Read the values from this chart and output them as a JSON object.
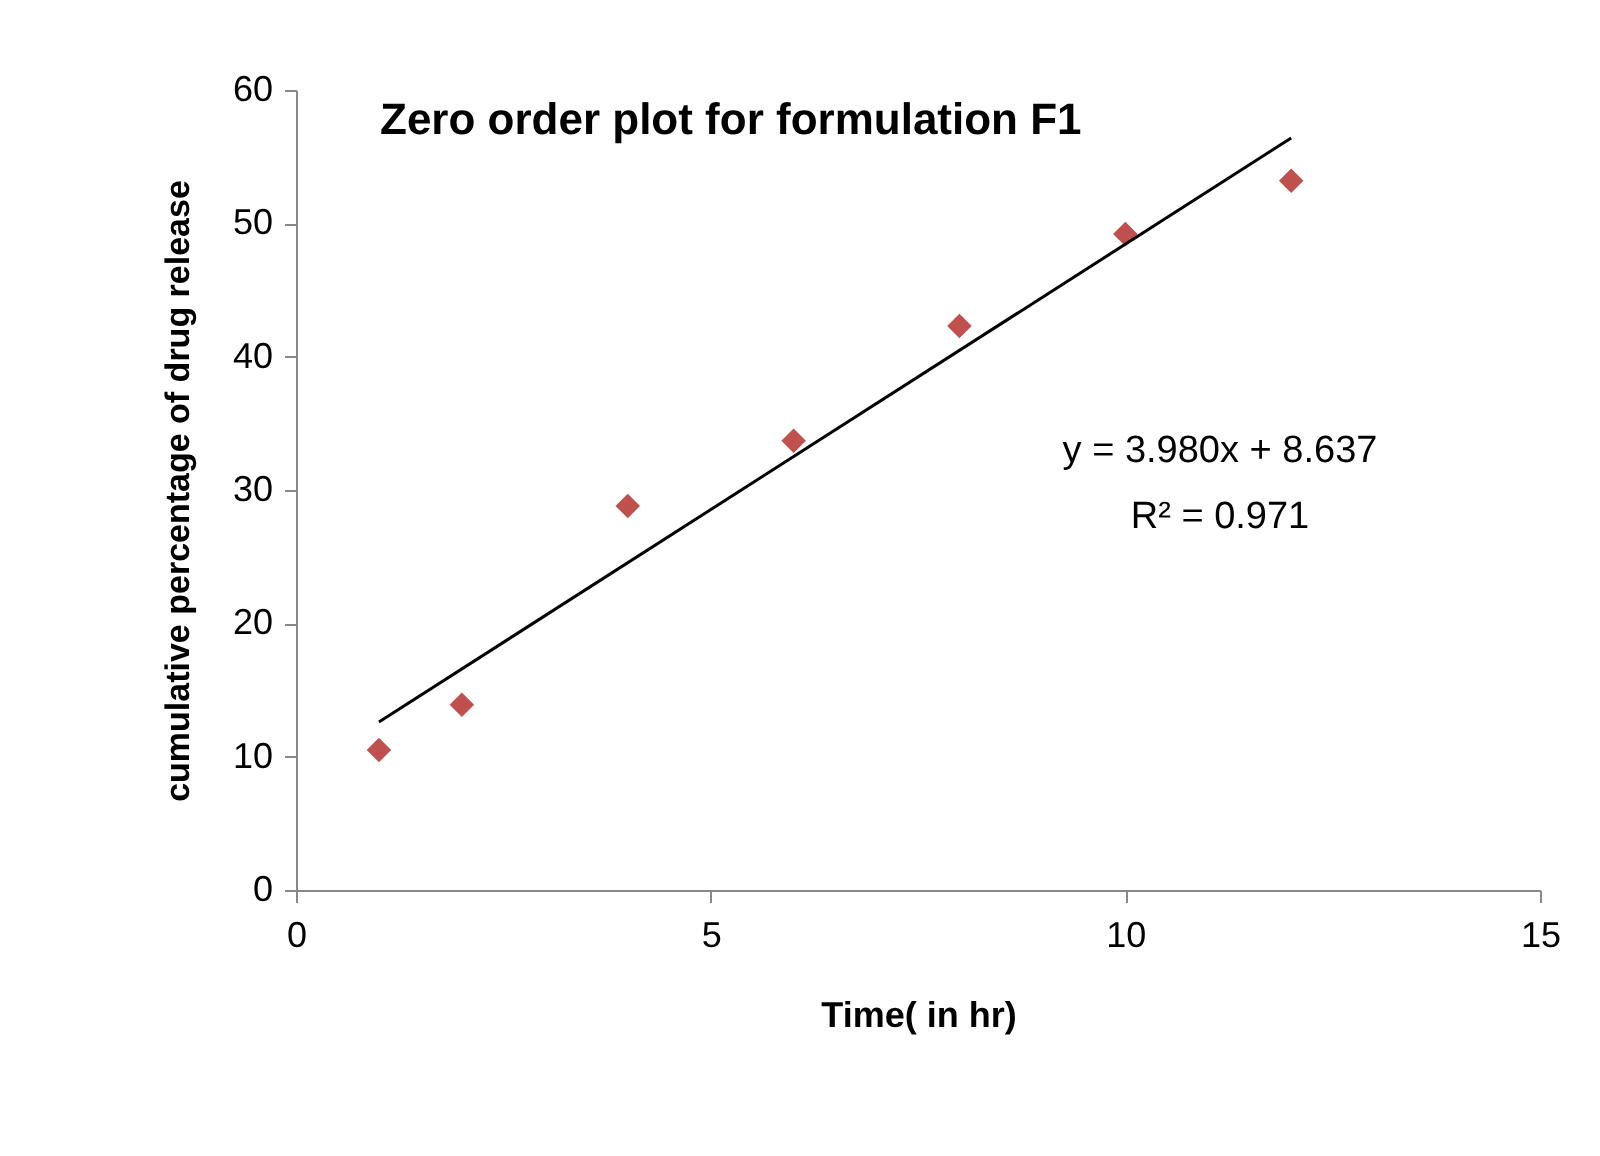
{
  "chart_data": {
    "type": "scatter",
    "title": "Zero order plot for formulation F1",
    "xlabel": "Time( in hr)",
    "ylabel": "cumulative percentage of drug release",
    "annotations": [
      "y = 3.980x + 8.637",
      "R² = 0.971"
    ],
    "x": [
      1,
      2,
      4,
      6,
      8,
      10,
      12
    ],
    "series": [
      {
        "color": "#c0504d",
        "marker": "diamond",
        "values": [
          10.5,
          13.9,
          28.8,
          33.7,
          42.3,
          49.2,
          53.2
        ]
      },
      {
        "type": "line",
        "color": "#000000",
        "x": [
          1,
          12
        ],
        "values": [
          12.6,
          56.4
        ]
      }
    ],
    "xlim": [
      0,
      15
    ],
    "xticks": [
      0,
      5,
      10,
      15
    ],
    "ylim": [
      0,
      60
    ],
    "yticks": [
      0,
      10,
      20,
      30,
      40,
      50,
      60
    ],
    "grid": false
  }
}
